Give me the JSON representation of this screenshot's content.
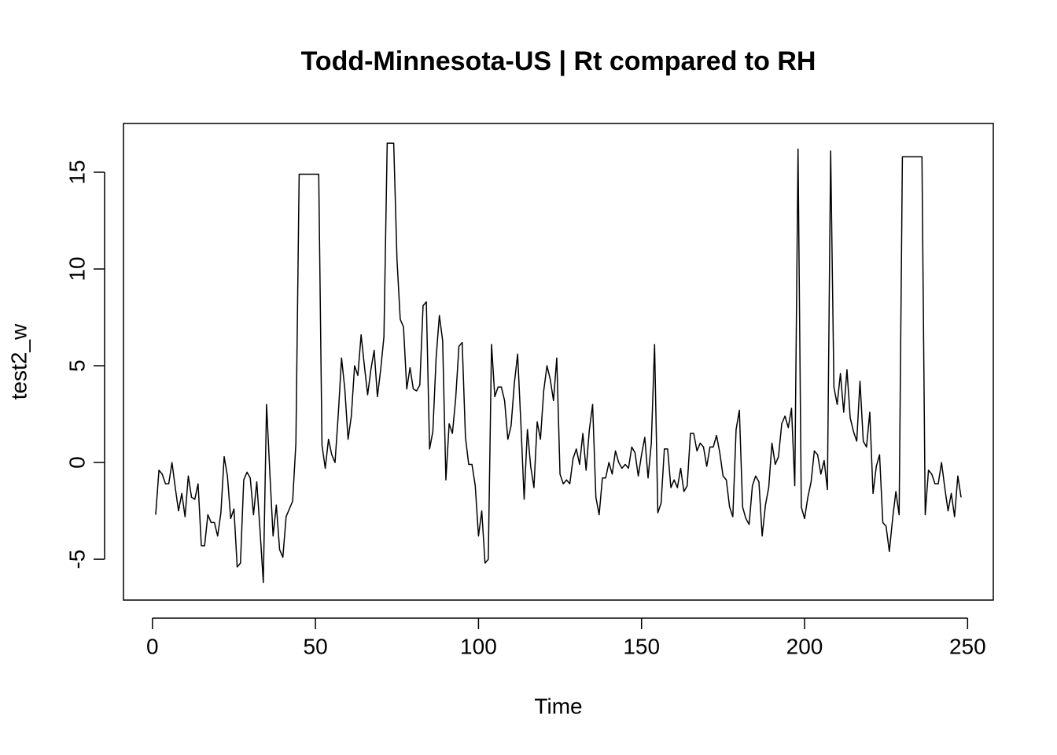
{
  "chart_data": {
    "type": "line",
    "title": "Todd-Minnesota-US | Rt compared to RH",
    "xlabel": "Time",
    "ylabel": "test2_w",
    "x": [
      1,
      2,
      3,
      4,
      5,
      6,
      7,
      8,
      9,
      10,
      11,
      12,
      13,
      14,
      15,
      16,
      17,
      18,
      19,
      20,
      21,
      22,
      23,
      24,
      25,
      26,
      27,
      28,
      29,
      30,
      31,
      32,
      33,
      34,
      35,
      36,
      37,
      38,
      39,
      40,
      41,
      42,
      43,
      44,
      45,
      46,
      47,
      48,
      49,
      50,
      51,
      52,
      53,
      54,
      55,
      56,
      57,
      58,
      59,
      60,
      61,
      62,
      63,
      64,
      65,
      66,
      67,
      68,
      69,
      70,
      71,
      72,
      73,
      74,
      75,
      76,
      77,
      78,
      79,
      80,
      81,
      82,
      83,
      84,
      85,
      86,
      87,
      88,
      89,
      90,
      91,
      92,
      93,
      94,
      95,
      96,
      97,
      98,
      99,
      100,
      101,
      102,
      103,
      104,
      105,
      106,
      107,
      108,
      109,
      110,
      111,
      112,
      113,
      114,
      115,
      116,
      117,
      118,
      119,
      120,
      121,
      122,
      123,
      124,
      125,
      126,
      127,
      128,
      129,
      130,
      131,
      132,
      133,
      134,
      135,
      136,
      137,
      138,
      139,
      140,
      141,
      142,
      143,
      144,
      145,
      146,
      147,
      148,
      149,
      150,
      151,
      152,
      153,
      154,
      155,
      156,
      157,
      158,
      159,
      160,
      161,
      162,
      163,
      164,
      165,
      166,
      167,
      168,
      169,
      170,
      171,
      172,
      173,
      174,
      175,
      176,
      177,
      178,
      179,
      180,
      181,
      182,
      183,
      184,
      185,
      186,
      187,
      188,
      189,
      190,
      191,
      192,
      193,
      194,
      195,
      196,
      197,
      198,
      199,
      200,
      201,
      202,
      203,
      204,
      205,
      206,
      207,
      208,
      209,
      210,
      211,
      212,
      213,
      214,
      215,
      216,
      217,
      218,
      219,
      220,
      221,
      222,
      223,
      224,
      225,
      226,
      227,
      228,
      229,
      230,
      231,
      232,
      233,
      234,
      235,
      236,
      237,
      238,
      239,
      240,
      241,
      242,
      243,
      244,
      245,
      246,
      247,
      248
    ],
    "series": [
      {
        "color": "#000000",
        "values": [
          -2.7,
          -0.4,
          -0.6,
          -1.1,
          -1.1,
          0.0,
          -1.3,
          -2.5,
          -1.6,
          -2.8,
          -0.7,
          -1.8,
          -1.9,
          -1.1,
          -4.3,
          -4.3,
          -2.7,
          -3.1,
          -3.1,
          -3.8,
          -2.6,
          0.3,
          -0.7,
          -2.9,
          -2.4,
          -5.4,
          -5.2,
          -0.9,
          -0.5,
          -0.8,
          -2.7,
          -1.0,
          -3.5,
          -6.2,
          3.0,
          -0.5,
          -3.8,
          -2.2,
          -4.5,
          -4.9,
          -2.8,
          -2.4,
          -2.0,
          1.0,
          14.9,
          14.9,
          14.9,
          14.9,
          14.9,
          14.9,
          14.9,
          0.9,
          -0.3,
          1.2,
          0.4,
          0.0,
          2.5,
          5.4,
          3.8,
          1.2,
          2.4,
          5.0,
          4.5,
          6.6,
          5.0,
          3.5,
          4.8,
          5.8,
          3.4,
          4.8,
          6.5,
          16.5,
          16.5,
          16.5,
          10.5,
          7.4,
          7.0,
          3.8,
          4.9,
          3.8,
          3.7,
          4.0,
          8.1,
          8.3,
          0.7,
          1.6,
          5.4,
          7.6,
          6.3,
          -0.9,
          2.0,
          1.5,
          3.3,
          6.0,
          6.2,
          1.3,
          -0.1,
          -0.1,
          -1.2,
          -3.8,
          -2.5,
          -5.2,
          -5.0,
          6.1,
          3.4,
          3.9,
          3.9,
          3.2,
          1.2,
          1.9,
          4.1,
          5.6,
          2.0,
          -1.9,
          1.7,
          -0.2,
          -1.3,
          2.1,
          1.2,
          3.7,
          5.0,
          4.3,
          3.2,
          5.4,
          -0.6,
          -1.1,
          -0.9,
          -1.1,
          0.2,
          0.7,
          -0.1,
          1.5,
          -0.4,
          1.7,
          3.0,
          -1.8,
          -2.7,
          -0.8,
          -0.8,
          0.0,
          -0.6,
          0.6,
          0.0,
          -0.3,
          -0.1,
          -0.3,
          0.8,
          0.5,
          -0.7,
          0.4,
          1.3,
          -0.8,
          1.0,
          6.1,
          -2.6,
          -2.1,
          0.7,
          0.7,
          -1.3,
          -0.9,
          -1.3,
          -0.3,
          -1.5,
          -1.2,
          1.5,
          1.5,
          0.6,
          1.0,
          0.8,
          -0.2,
          0.8,
          0.8,
          1.4,
          0.5,
          -0.7,
          -0.9,
          -2.3,
          -2.8,
          1.7,
          2.7,
          -2.3,
          -2.9,
          -3.2,
          -1.2,
          -0.7,
          -1.0,
          -3.8,
          -2.2,
          -1.3,
          1.0,
          -0.1,
          0.3,
          2.0,
          2.4,
          1.8,
          2.8,
          -1.2,
          16.2,
          -2.3,
          -2.9,
          -1.8,
          -1.0,
          0.6,
          0.4,
          -0.6,
          0.1,
          -1.4,
          16.1,
          3.9,
          3.0,
          4.6,
          2.6,
          4.8,
          2.3,
          1.6,
          1.1,
          4.2,
          1.1,
          0.8,
          2.6,
          -1.6,
          -0.2,
          0.4,
          -3.1,
          -3.3,
          -4.6,
          -2.9,
          -1.5,
          -2.7,
          15.8,
          15.8,
          15.8,
          15.8,
          15.8,
          15.8,
          15.8,
          -2.7,
          -0.4,
          -0.6,
          -1.1,
          -1.1,
          0.0,
          -1.3,
          -2.5,
          -1.6,
          -2.8,
          -0.7,
          -1.8
        ]
      }
    ],
    "xlim": [
      -8.88,
      257.88
    ],
    "ylim": [
      -7.11,
      17.52
    ],
    "xticks": [
      0,
      50,
      100,
      150,
      200,
      250
    ],
    "yticks": [
      -5,
      0,
      5,
      10,
      15
    ],
    "grid": false
  }
}
